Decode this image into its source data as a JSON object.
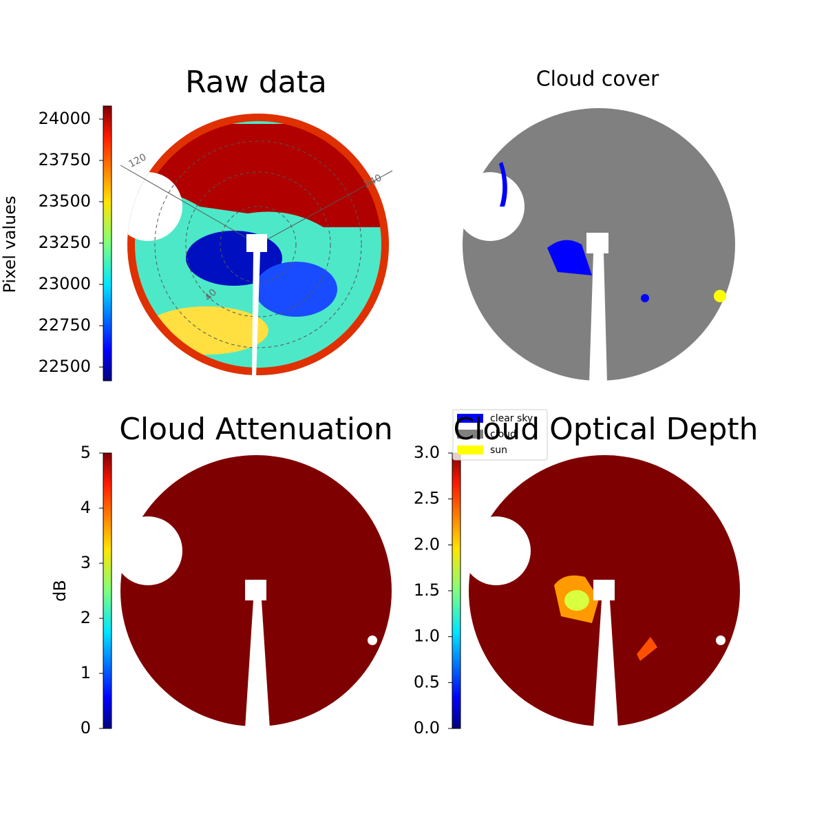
{
  "chart_data": [
    {
      "type": "image",
      "title": "Raw data",
      "colorbar_label": "Pixel values",
      "clim": [
        22417,
        24079
      ],
      "cticks": [
        22500,
        22750,
        23000,
        23250,
        23500,
        23750,
        24000
      ],
      "annotations": [
        "120",
        "240",
        "40"
      ]
    },
    {
      "type": "image",
      "title": "Cloud cover",
      "legend": [
        {
          "name": "clear sky",
          "color": "#0000ff"
        },
        {
          "name": "cloud",
          "color": "#808080"
        },
        {
          "name": "sun",
          "color": "#ffff00"
        }
      ]
    },
    {
      "type": "image",
      "title": "Cloud Attenuation",
      "colorbar_label": "dB",
      "clim": [
        0,
        5
      ],
      "cticks": [
        0,
        1,
        2,
        3,
        4,
        5
      ]
    },
    {
      "type": "image",
      "title": "Cloud Optical Depth",
      "clim": [
        0,
        3
      ],
      "cticks": [
        {
          "value": 0,
          "label": "0.0"
        },
        0.5,
        {
          "value": 1,
          "label": "1.0"
        },
        1.5,
        {
          "value": 2,
          "label": "2.0"
        },
        2.5,
        {
          "value": 3,
          "label": "3.0"
        }
      ]
    }
  ]
}
